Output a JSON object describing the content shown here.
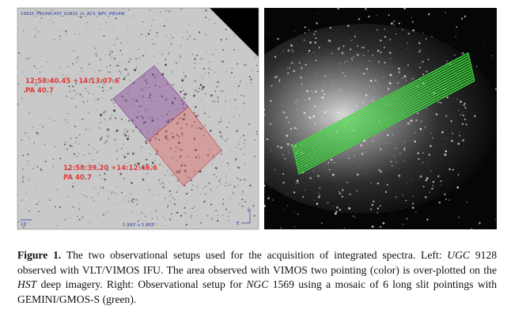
{
  "figure": {
    "left_panel": {
      "header": "10915_F814W;HST_10915_1t_ACS_WFC_F814W",
      "annotations": [
        {
          "coords": "12:58:40.45 +14:13:07.6",
          "pa": "PA 40.7"
        },
        {
          "coords": "12:58:39.20 +14:12:46.6",
          "pa": "PA 40.7"
        }
      ],
      "scale": "15''",
      "field": "1.993' x 1.803'",
      "compass": [
        "N",
        "E"
      ]
    },
    "caption": {
      "label": "Figure 1.",
      "parts": [
        " The two observational setups used for the acquisition of integrated spectra. Left: ",
        "UGC",
        " 9128 observed with VLT/VIMOS IFU. The area observed with VIMOS two pointing (color) is over-plotted on the ",
        "HST",
        " deep imagery. Right: Observational setup for ",
        "NGC",
        " 1569 using a mosaic of 6 long slit pointings with GEMINI/GMOS-S (green)."
      ]
    }
  }
}
